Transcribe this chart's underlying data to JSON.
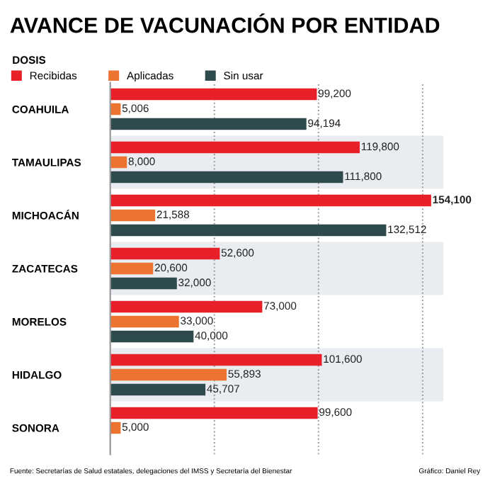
{
  "chart_data": {
    "type": "bar",
    "orientation": "horizontal",
    "title": "AVANCE DE VACUNACIÓN POR ENTIDAD",
    "legend_title": "DOSIS",
    "categories": [
      "COAHUILA",
      "TAMAULIPAS",
      "MICHOACÁN",
      "ZACATECAS",
      "MORELOS",
      "HIDALGO",
      "SONORA"
    ],
    "series": [
      {
        "name": "Recibidas",
        "color": "#e8202a",
        "values": [
          99200,
          119800,
          154100,
          52600,
          73000,
          101600,
          99600
        ],
        "value_labels": [
          "99,200",
          "119,800",
          "154,100",
          "52,600",
          "73,000",
          "101,600",
          "99,600"
        ]
      },
      {
        "name": "Aplicadas",
        "color": "#ec7430",
        "values": [
          5006,
          8000,
          21588,
          20600,
          33000,
          55893,
          5000
        ],
        "value_labels": [
          "5,006",
          "8,000",
          "21,588",
          "20,600",
          "33,000",
          "55,893",
          "5,000"
        ]
      },
      {
        "name": "Sin usar",
        "color": "#2f4a4c",
        "values": [
          94194,
          111800,
          132512,
          32000,
          40000,
          45707,
          null
        ],
        "value_labels": [
          "94,194",
          "111,800",
          "132,512",
          "32,000",
          "40,000",
          "45,707",
          null
        ]
      }
    ],
    "xlim": [
      0,
      160000
    ],
    "xticks": [
      {
        "value": 50000,
        "label": null
      },
      {
        "value": 100000,
        "label": null
      },
      {
        "value": 150000,
        "label": null
      }
    ],
    "grid": "x",
    "legend": "top left",
    "tick_labels": "y",
    "annotations": [
      "Fuente: Secretarías de Salud estatales, delegaciones del IMSS y Secretaría del Bienestar",
      "Gráfico: Daniel Rey"
    ]
  }
}
